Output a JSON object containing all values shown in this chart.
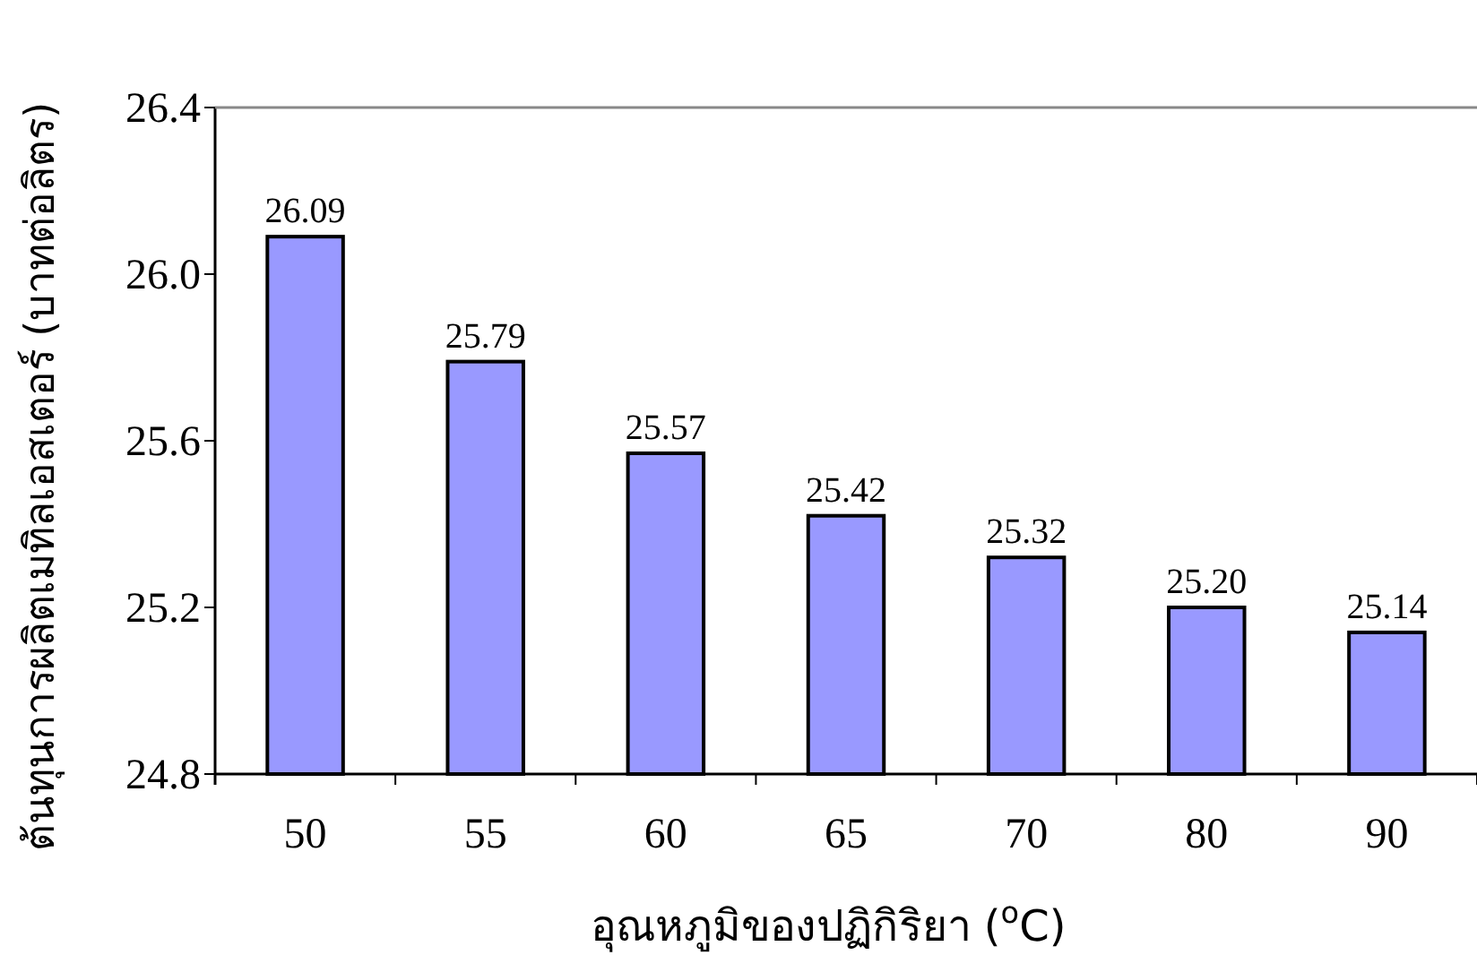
{
  "chart_data": {
    "type": "bar",
    "xlabel": "อุณหภูมิของปฏิกิริยา ($^{o}$C)",
    "ylabel": "ต้นทุนการผลิตเมทิลเอสเตอร์ (บาทต่อลิตร)",
    "categories": [
      "50",
      "55",
      "60",
      "65",
      "70",
      "80",
      "90"
    ],
    "values": [
      26.09,
      25.79,
      25.57,
      25.42,
      25.32,
      25.2,
      25.14
    ],
    "value_labels": [
      "26.09",
      "25.79",
      "25.57",
      "25.42",
      "25.32",
      "25.20",
      "25.14"
    ],
    "color": "#9999ff",
    "ylim": [
      24.8,
      26.4
    ],
    "yticks": [
      {
        "value": 24.8,
        "label": "24.8"
      },
      {
        "value": 25.2,
        "label": "25.2"
      },
      {
        "value": 25.6,
        "label": "25.6"
      },
      {
        "value": 26.0,
        "label": "26.0"
      },
      {
        "value": 26.4,
        "label": "26.4"
      }
    ],
    "grid": false
  }
}
